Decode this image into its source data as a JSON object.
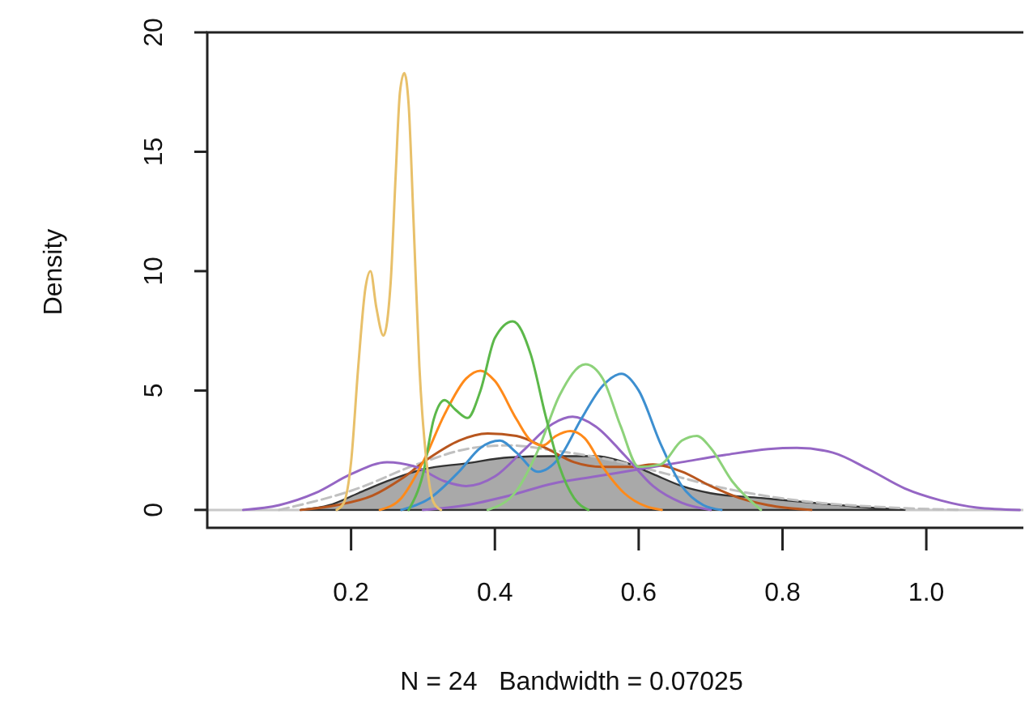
{
  "chart_data": {
    "type": "line",
    "xlabel": "N = 24   Bandwidth = 0.07025",
    "ylabel": "Density",
    "xlim": [
      0,
      1.135
    ],
    "ylim": [
      -0.75,
      20
    ],
    "xticks": [
      {
        "value": 0.2,
        "label": "0.2"
      },
      {
        "value": 0.4,
        "label": "0.4"
      },
      {
        "value": 0.6,
        "label": "0.6"
      },
      {
        "value": 0.8,
        "label": "0.8"
      },
      {
        "value": 1.0,
        "label": "1.0"
      }
    ],
    "yticks": [
      0,
      5,
      10,
      15,
      20
    ],
    "grid": false,
    "marker": "none",
    "ref_lines": [
      {
        "axis": "y",
        "value": 0,
        "color": "#c8c8c8"
      }
    ],
    "series": [
      {
        "type": "area",
        "color": "#a9a9a9",
        "x": [
          0.13,
          0.17,
          0.21,
          0.25,
          0.3,
          0.36,
          0.42,
          0.48,
          0.54,
          0.58,
          0.62,
          0.66,
          0.7,
          0.77,
          0.86,
          0.92,
          0.97
        ],
        "values": [
          0,
          0.2,
          0.7,
          1.2,
          1.7,
          1.95,
          2.2,
          2.25,
          2.25,
          2.0,
          1.5,
          1.0,
          0.7,
          0.5,
          0.25,
          0.1,
          0
        ]
      },
      {
        "color": "#c0c0c0",
        "line_style": "dashed",
        "x": [
          0.1,
          0.2,
          0.3,
          0.37,
          0.42,
          0.48,
          0.56,
          0.64,
          0.72,
          0.82,
          0.95,
          1.05
        ],
        "values": [
          0,
          0.8,
          2.0,
          2.6,
          2.7,
          2.5,
          2.1,
          1.5,
          0.9,
          0.4,
          0.1,
          0
        ]
      },
      {
        "color": "#9566c4",
        "x": [
          0.3,
          0.36,
          0.42,
          0.48,
          0.54,
          0.6,
          0.66,
          0.72,
          0.78,
          0.82,
          0.87,
          0.92,
          0.97,
          1.02,
          1.07,
          1.13
        ],
        "values": [
          0,
          0.2,
          0.6,
          1.1,
          1.4,
          1.7,
          2.0,
          2.3,
          2.55,
          2.6,
          2.4,
          1.7,
          0.9,
          0.4,
          0.1,
          0
        ]
      },
      {
        "color": "#b8561e",
        "x": [
          0.13,
          0.18,
          0.23,
          0.27,
          0.31,
          0.35,
          0.39,
          0.43,
          0.47,
          0.51,
          0.55,
          0.59,
          0.62,
          0.66,
          0.7,
          0.74,
          0.78,
          0.84
        ],
        "values": [
          0,
          0.2,
          0.6,
          1.3,
          2.2,
          2.9,
          3.2,
          3.1,
          2.6,
          2.0,
          1.8,
          1.8,
          1.9,
          1.6,
          1.0,
          0.5,
          0.2,
          0
        ]
      },
      {
        "color": "#9566c4",
        "x": [
          0.05,
          0.1,
          0.15,
          0.2,
          0.25,
          0.29,
          0.33,
          0.36,
          0.4,
          0.44,
          0.48,
          0.508,
          0.54,
          0.58,
          0.62,
          0.66,
          0.7
        ],
        "values": [
          0,
          0.2,
          0.7,
          1.5,
          2.0,
          1.8,
          1.2,
          1.0,
          1.4,
          2.5,
          3.6,
          3.9,
          3.5,
          2.3,
          1.0,
          0.3,
          0
        ]
      },
      {
        "color": "#3d8fd0",
        "x": [
          0.27,
          0.31,
          0.35,
          0.38,
          0.407,
          0.43,
          0.46,
          0.49,
          0.52,
          0.55,
          0.576,
          0.6,
          0.63,
          0.66,
          0.69,
          0.715
        ],
        "values": [
          0,
          0.5,
          1.6,
          2.6,
          2.9,
          2.4,
          1.6,
          2.2,
          3.8,
          5.2,
          5.7,
          5.0,
          2.8,
          1.0,
          0.2,
          0
        ]
      },
      {
        "color": "#8dd27a",
        "x": [
          0.39,
          0.43,
          0.46,
          0.49,
          0.526,
          0.55,
          0.575,
          0.6,
          0.63,
          0.66,
          0.681,
          0.7,
          0.73,
          0.77
        ],
        "values": [
          0,
          0.8,
          2.5,
          4.8,
          6.1,
          5.5,
          3.5,
          1.8,
          1.9,
          2.9,
          3.1,
          2.6,
          1.2,
          0
        ]
      },
      {
        "color": "#ff8a1a",
        "x": [
          0.24,
          0.27,
          0.3,
          0.33,
          0.36,
          0.38,
          0.4,
          0.43,
          0.45,
          0.467,
          0.485,
          0.505,
          0.525,
          0.55,
          0.58,
          0.61,
          0.632
        ],
        "values": [
          0,
          0.5,
          2,
          4,
          5.5,
          5.83,
          5.4,
          3.8,
          2.9,
          2.7,
          3.1,
          3.3,
          3,
          1.8,
          0.7,
          0.15,
          0
        ]
      },
      {
        "color": "#5cb84a",
        "x": [
          0.28,
          0.3,
          0.315,
          0.33,
          0.345,
          0.362,
          0.38,
          0.4,
          0.425,
          0.45,
          0.47,
          0.49,
          0.51,
          0.53
        ],
        "values": [
          0,
          1.5,
          3.8,
          4.6,
          4.2,
          3.85,
          5,
          7.2,
          7.9,
          6.5,
          4,
          1.8,
          0.5,
          0
        ]
      },
      {
        "color": "#e8c06a",
        "x": [
          0.18,
          0.19,
          0.2,
          0.21,
          0.22,
          0.227,
          0.235,
          0.245,
          0.255,
          0.262,
          0.268,
          0.274,
          0.28,
          0.287,
          0.295,
          0.305,
          0.315,
          0.325
        ],
        "values": [
          0,
          0.3,
          2,
          6,
          9.3,
          10,
          8.5,
          7.3,
          9.5,
          14,
          17.5,
          18.3,
          17,
          12,
          6,
          2,
          0.3,
          0
        ]
      }
    ]
  }
}
